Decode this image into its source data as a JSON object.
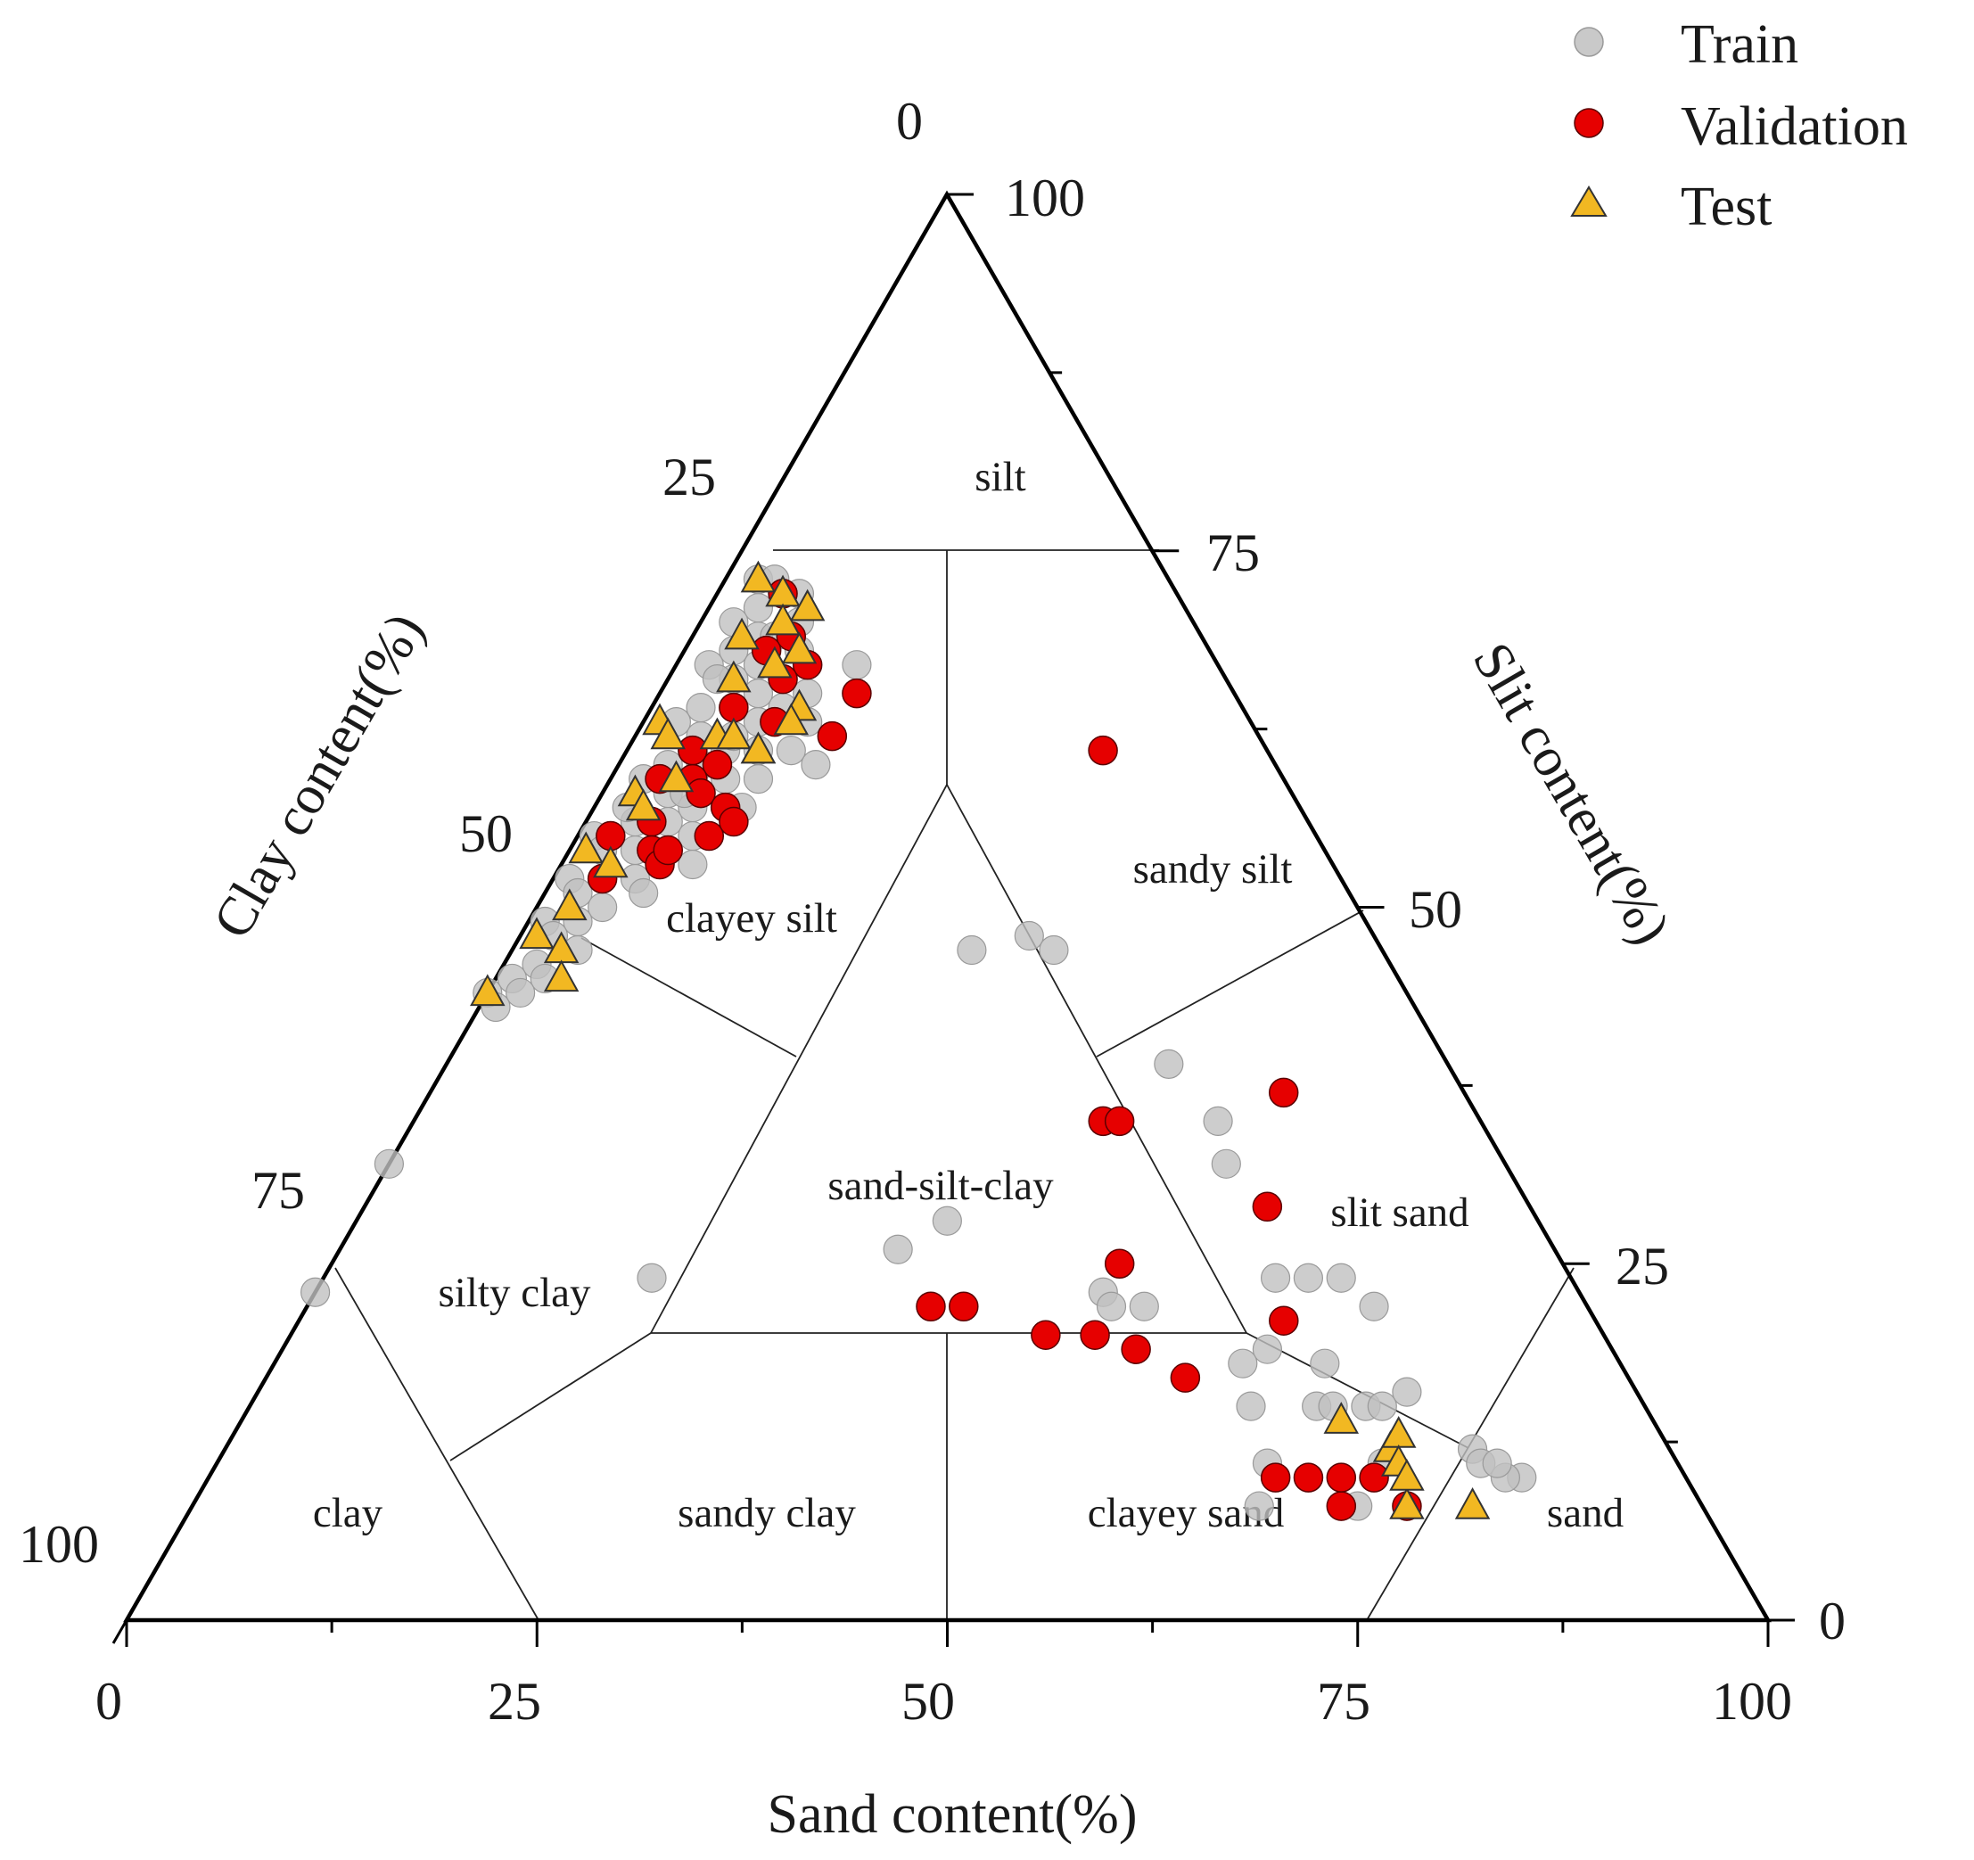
{
  "chart_data": {
    "type": "scatter",
    "subtype": "ternary",
    "axes": {
      "sand": {
        "title": "Sand content(%)",
        "ticks": [
          "0",
          "25",
          "50",
          "75",
          "100"
        ],
        "range": [
          0,
          100
        ]
      },
      "silt": {
        "title": "Slit content(%)",
        "ticks": [
          "0",
          "25",
          "50",
          "75",
          "100"
        ],
        "range": [
          0,
          100
        ]
      },
      "clay": {
        "title": "Clay content(%)",
        "ticks": [
          "0",
          "25",
          "50",
          "75",
          "100"
        ],
        "range": [
          0,
          100
        ]
      }
    },
    "regions": [
      {
        "name": "silt",
        "label": "silt"
      },
      {
        "name": "clayey-silt",
        "label": "clayey silt"
      },
      {
        "name": "sandy-silt",
        "label": "sandy silt"
      },
      {
        "name": "sand-silt-clay",
        "label": "sand-silt-clay"
      },
      {
        "name": "silty-clay",
        "label": "silty clay"
      },
      {
        "name": "slit-sand",
        "label": "slit sand"
      },
      {
        "name": "clay",
        "label": "clay"
      },
      {
        "name": "sandy-clay",
        "label": "sandy clay"
      },
      {
        "name": "clayey-sand",
        "label": "clayey sand"
      },
      {
        "name": "sand",
        "label": "sand"
      }
    ],
    "legend": {
      "position": "top-right",
      "entries": [
        {
          "label": "Train",
          "color": "#c0c0c0",
          "marker": "circle"
        },
        {
          "label": "Validation",
          "color": "#e60000",
          "marker": "circle"
        },
        {
          "label": "Test",
          "color": "#f2b822",
          "marker": "triangle"
        }
      ]
    },
    "series": [
      {
        "name": "Train",
        "color": "#c0c0c0",
        "points": [
          [
            2,
            73,
            25
          ],
          [
            3,
            73,
            24
          ],
          [
            4,
            72,
            24
          ],
          [
            5,
            72,
            23
          ],
          [
            3,
            71,
            26
          ],
          [
            6,
            70,
            24
          ],
          [
            2,
            70,
            28
          ],
          [
            4,
            69,
            27
          ],
          [
            7,
            68,
            25
          ],
          [
            3,
            68,
            29
          ],
          [
            5,
            67,
            28
          ],
          [
            8,
            67,
            25
          ],
          [
            2,
            67,
            31
          ],
          [
            4,
            66,
            30
          ],
          [
            6,
            65,
            29
          ],
          [
            9,
            65,
            26
          ],
          [
            3,
            64,
            33
          ],
          [
            5,
            64,
            31
          ],
          [
            7,
            63,
            30
          ],
          [
            10,
            63,
            27
          ],
          [
            2,
            63,
            35
          ],
          [
            4,
            62,
            34
          ],
          [
            6,
            61,
            33
          ],
          [
            8,
            61,
            31
          ],
          [
            3,
            60,
            37
          ],
          [
            5,
            60,
            35
          ],
          [
            7,
            59,
            34
          ],
          [
            9,
            59,
            32
          ],
          [
            2,
            59,
            39
          ],
          [
            4,
            58,
            38
          ],
          [
            6,
            57,
            37
          ],
          [
            8,
            57,
            35
          ],
          [
            3,
            56,
            41
          ],
          [
            5,
            56,
            39
          ],
          [
            7,
            55,
            38
          ],
          [
            1,
            55,
            44
          ],
          [
            2,
            54,
            44
          ],
          [
            4,
            54,
            42
          ],
          [
            6,
            53,
            41
          ],
          [
            3,
            52,
            45
          ],
          [
            5,
            52,
            43
          ],
          [
            1,
            52,
            47
          ],
          [
            2,
            51,
            47
          ],
          [
            4,
            50,
            46
          ],
          [
            3,
            49,
            48
          ],
          [
            1,
            49,
            50
          ],
          [
            2,
            48,
            50
          ],
          [
            4,
            47,
            49
          ],
          [
            2,
            46,
            52
          ],
          [
            3,
            45,
            52
          ],
          [
            1,
            45,
            54
          ],
          [
            2,
            44,
            54
          ],
          [
            0,
            44,
            56
          ],
          [
            1,
            43,
            56
          ],
          [
            5,
            69,
            26
          ],
          [
            8,
            64,
            28
          ],
          [
            6,
            62,
            32
          ],
          [
            10,
            61,
            29
          ],
          [
            12,
            60,
            28
          ],
          [
            9,
            57,
            34
          ],
          [
            6,
            51,
            43
          ],
          [
            8,
            53,
            39
          ],
          [
            11,
            67,
            22
          ],
          [
            3,
            66,
            31
          ],
          [
            5,
            58,
            37
          ],
          [
            2,
            57,
            41
          ],
          [
            0,
            32,
            68
          ],
          [
            0,
            23,
            77
          ],
          [
            28,
            47,
            25
          ],
          [
            31,
            48,
            21
          ],
          [
            33,
            47,
            20
          ],
          [
            20,
            24,
            56
          ],
          [
            44,
            39,
            17
          ],
          [
            49,
            35,
            16
          ],
          [
            51,
            32,
            17
          ],
          [
            34,
            26,
            40
          ],
          [
            36,
            28,
            36
          ],
          [
            48,
            23,
            29
          ],
          [
            49,
            22,
            29
          ],
          [
            51,
            22,
            27
          ],
          [
            58,
            24,
            18
          ],
          [
            60,
            24,
            16
          ],
          [
            62,
            24,
            14
          ],
          [
            65,
            22,
            13
          ],
          [
            61,
            15,
            24
          ],
          [
            65,
            15,
            20
          ],
          [
            66,
            15,
            19
          ],
          [
            68,
            15,
            17
          ],
          [
            70,
            16,
            14
          ],
          [
            69,
            15,
            16
          ],
          [
            60,
            19,
            21
          ],
          [
            59,
            18,
            23
          ],
          [
            64,
            18,
            18
          ],
          [
            71,
            11,
            18
          ],
          [
            65,
            8,
            27
          ],
          [
            64,
            11,
            25
          ],
          [
            71,
            8,
            21
          ],
          [
            76,
            12,
            12
          ],
          [
            77,
            11,
            12
          ],
          [
            80,
            10,
            10
          ],
          [
            79,
            10,
            11
          ],
          [
            78,
            11,
            11
          ]
        ]
      },
      {
        "name": "Validation",
        "color": "#e60000",
        "points": [
          [
            4,
            72,
            24
          ],
          [
            6,
            69,
            25
          ],
          [
            5,
            68,
            27
          ],
          [
            8,
            67,
            25
          ],
          [
            7,
            66,
            27
          ],
          [
            12,
            65,
            23
          ],
          [
            5,
            64,
            31
          ],
          [
            8,
            63,
            29
          ],
          [
            4,
            61,
            35
          ],
          [
            6,
            60,
            34
          ],
          [
            3,
            59,
            38
          ],
          [
            5,
            59,
            36
          ],
          [
            6,
            58,
            36
          ],
          [
            8,
            57,
            35
          ],
          [
            4,
            56,
            40
          ],
          [
            8,
            55,
            37
          ],
          [
            9,
            56,
            35
          ],
          [
            2,
            55,
            43
          ],
          [
            5,
            54,
            41
          ],
          [
            6,
            53,
            41
          ],
          [
            12,
            62,
            26
          ],
          [
            3,
            52,
            45
          ],
          [
            6,
            54,
            40
          ],
          [
            42,
            35,
            23
          ],
          [
            43,
            35,
            22
          ],
          [
            29,
            61,
            10
          ],
          [
            40,
            22,
            38
          ],
          [
            38,
            22,
            40
          ],
          [
            52,
            37,
            11
          ],
          [
            55,
            29,
            16
          ],
          [
            52,
            19,
            29
          ],
          [
            48,
            25,
            27
          ],
          [
            46,
            20,
            34
          ],
          [
            49,
            20,
            31
          ],
          [
            56,
            17,
            27
          ],
          [
            60,
            21,
            19
          ],
          [
            65,
            10,
            25
          ],
          [
            67,
            10,
            23
          ],
          [
            70,
            8,
            22
          ],
          [
            69,
            10,
            21
          ],
          [
            71,
            10,
            19
          ],
          [
            74,
            8,
            18
          ]
        ]
      },
      {
        "name": "Test",
        "color": "#f2b822",
        "points": [
          [
            2,
            73,
            25
          ],
          [
            4,
            72,
            24
          ],
          [
            6,
            71,
            23
          ],
          [
            5,
            70,
            25
          ],
          [
            3,
            69,
            28
          ],
          [
            7,
            68,
            25
          ],
          [
            6,
            67,
            27
          ],
          [
            4,
            66,
            30
          ],
          [
            5,
            62,
            33
          ],
          [
            1,
            63,
            36
          ],
          [
            2,
            62,
            36
          ],
          [
            8,
            61,
            31
          ],
          [
            4,
            59,
            37
          ],
          [
            2,
            58,
            40
          ],
          [
            3,
            57,
            40
          ],
          [
            1,
            54,
            45
          ],
          [
            2,
            50,
            48
          ],
          [
            1,
            48,
            51
          ],
          [
            3,
            47,
            50
          ],
          [
            4,
            45,
            51
          ],
          [
            0,
            44,
            56
          ],
          [
            3,
            53,
            44
          ],
          [
            6,
            62,
            32
          ],
          [
            9,
            64,
            27
          ],
          [
            9,
            63,
            28
          ],
          [
            8,
            61,
            31
          ],
          [
            67,
            14,
            19
          ],
          [
            71,
            12,
            17
          ],
          [
            71,
            13,
            16
          ],
          [
            72,
            11,
            17
          ],
          [
            74,
            8,
            18
          ],
          [
            78,
            8,
            14
          ],
          [
            73,
            10,
            17
          ]
        ]
      }
    ]
  }
}
